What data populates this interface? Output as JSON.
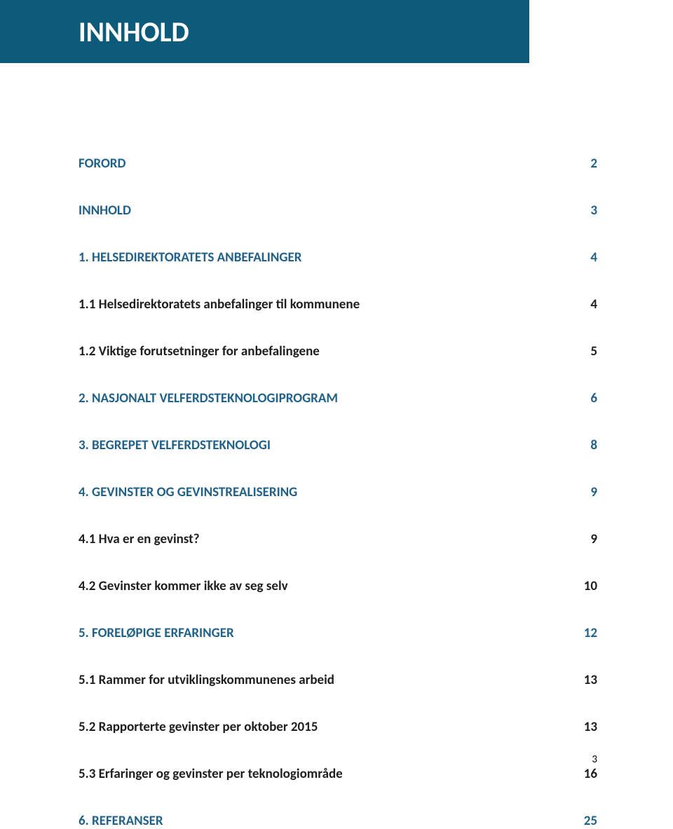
{
  "colors": {
    "header_band_bg": "#0d5a7a",
    "header_title_color": "#ffffff",
    "heading_color": "#1f6189",
    "subheading_color": "#1e1e1e",
    "page_bg": "#ffffff"
  },
  "typography": {
    "header_title_fontsize": 40,
    "heading_fontsize": 19,
    "subheading_fontsize": 19,
    "row_gap_major": 44,
    "row_gap_minor": 44
  },
  "header": {
    "title": "INNHOLD"
  },
  "toc": [
    {
      "label": "FORORD",
      "page": "2",
      "level": 1
    },
    {
      "label": "INNHOLD",
      "page": "3",
      "level": 1
    },
    {
      "label": "1.   HELSEDIREKTORATETS ANBEFALINGER",
      "page": "4",
      "level": 1
    },
    {
      "label": "1.1  Helsedirektoratets anbefalinger til kommunene",
      "page": "4",
      "level": 2
    },
    {
      "label": "1.2  Viktige forutsetninger for anbefalingene",
      "page": "5",
      "level": 2
    },
    {
      "label": "2.   NASJONALT VELFERDSTEKNOLOGIPROGRAM",
      "page": "6",
      "level": 1
    },
    {
      "label": "3.   BEGREPET VELFERDSTEKNOLOGI",
      "page": "8",
      "level": 1
    },
    {
      "label": "4.   GEVINSTER OG GEVINSTREALISERING",
      "page": "9",
      "level": 1
    },
    {
      "label": "4.1  Hva er en gevinst?",
      "page": "9",
      "level": 2
    },
    {
      "label": "4.2  Gevinster kommer ikke av seg selv",
      "page": "10",
      "level": 2
    },
    {
      "label": "5.   FORELØPIGE ERFARINGER",
      "page": "12",
      "level": 1
    },
    {
      "label": "5.1  Rammer for utviklingskommunenes arbeid",
      "page": "13",
      "level": 2
    },
    {
      "label": "5.2  Rapporterte gevinster per oktober 2015",
      "page": "13",
      "level": 2
    },
    {
      "label": "5.3  Erfaringer og gevinster per teknologiområde",
      "page": "16",
      "level": 2
    },
    {
      "label": "6.   REFERANSER",
      "page": "25",
      "level": 1
    }
  ],
  "page_number": "3"
}
